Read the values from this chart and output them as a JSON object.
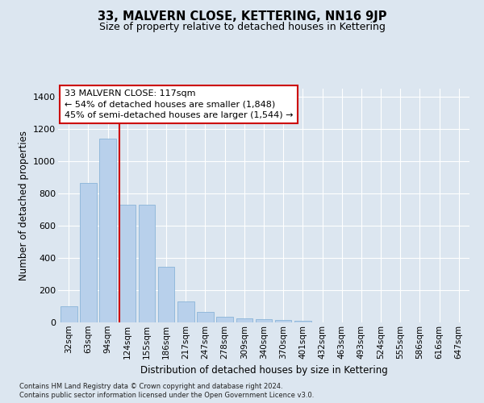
{
  "title": "33, MALVERN CLOSE, KETTERING, NN16 9JP",
  "subtitle": "Size of property relative to detached houses in Kettering",
  "xlabel": "Distribution of detached houses by size in Kettering",
  "ylabel": "Number of detached properties",
  "categories": [
    "32sqm",
    "63sqm",
    "94sqm",
    "124sqm",
    "155sqm",
    "186sqm",
    "217sqm",
    "247sqm",
    "278sqm",
    "309sqm",
    "340sqm",
    "370sqm",
    "401sqm",
    "432sqm",
    "463sqm",
    "493sqm",
    "524sqm",
    "555sqm",
    "586sqm",
    "616sqm",
    "647sqm"
  ],
  "values": [
    100,
    865,
    1140,
    730,
    730,
    345,
    130,
    65,
    35,
    25,
    20,
    15,
    10,
    0,
    0,
    0,
    0,
    0,
    0,
    0,
    0
  ],
  "bar_color": "#b8d0eb",
  "bar_edge_color": "#8ab4d8",
  "vline_color": "#cc0000",
  "vline_x": 2.575,
  "annotation_text": "33 MALVERN CLOSE: 117sqm\n← 54% of detached houses are smaller (1,848)\n45% of semi-detached houses are larger (1,544) →",
  "ann_box_fc": "#ffffff",
  "ann_box_ec": "#cc0000",
  "ylim": [
    0,
    1450
  ],
  "yticks": [
    0,
    200,
    400,
    600,
    800,
    1000,
    1200,
    1400
  ],
  "bg_color": "#dce6f0",
  "footer1": "Contains HM Land Registry data © Crown copyright and database right 2024.",
  "footer2": "Contains public sector information licensed under the Open Government Licence v3.0.",
  "title_fontsize": 10.5,
  "subtitle_fontsize": 9,
  "axis_label_fontsize": 8.5,
  "tick_fontsize": 7.5,
  "footer_fontsize": 6.0,
  "ann_fontsize": 8.0
}
